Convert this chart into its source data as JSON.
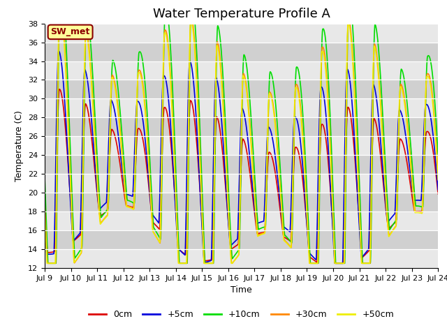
{
  "title": "Water Temperature Profile A",
  "xlabel": "Time",
  "ylabel": "Temperature (C)",
  "ylim": [
    12,
    38
  ],
  "yticks": [
    12,
    14,
    16,
    18,
    20,
    22,
    24,
    26,
    28,
    30,
    32,
    34,
    36,
    38
  ],
  "series": {
    "0cm": {
      "color": "#dd0000",
      "lw": 1.2
    },
    "+5cm": {
      "color": "#0000dd",
      "lw": 1.2
    },
    "+10cm": {
      "color": "#00dd00",
      "lw": 1.2
    },
    "+30cm": {
      "color": "#ff8800",
      "lw": 1.2
    },
    "+50cm": {
      "color": "#eeee00",
      "lw": 1.2
    }
  },
  "annotation_text": "SW_met",
  "annotation_color": "#8b0000",
  "annotation_bg": "#ffff99",
  "bg_light": "#e8e8e8",
  "bg_dark": "#d0d0d0",
  "title_fontsize": 13,
  "label_fontsize": 9,
  "tick_fontsize": 8,
  "legend_fontsize": 9,
  "n_days": 15,
  "points_per_day": 144
}
